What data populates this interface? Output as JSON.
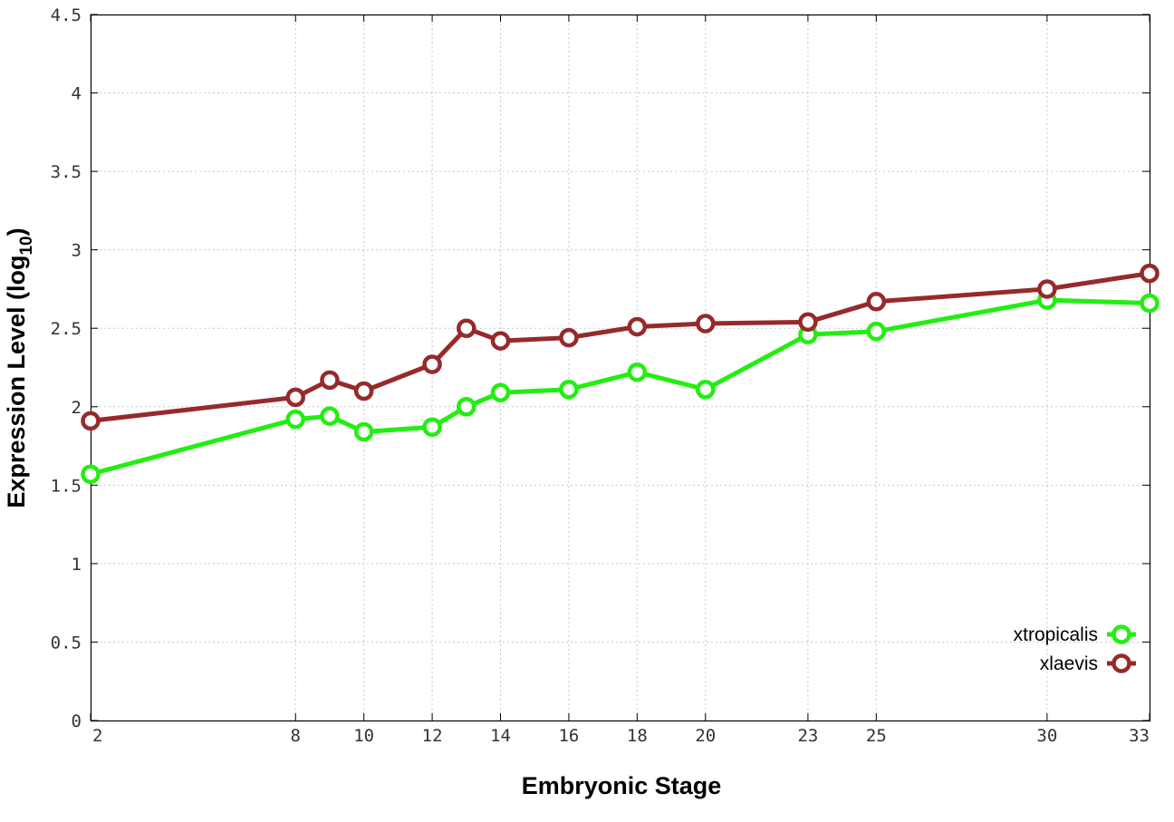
{
  "chart_data": {
    "type": "line",
    "title": "",
    "xlabel": "Embryonic Stage",
    "ylabel_main": "Expression Level (log",
    "ylabel_sub": "10",
    "ylabel_close": ")",
    "xlim": [
      2,
      33
    ],
    "ylim": [
      0,
      4.5
    ],
    "x_ticks": [
      2,
      8,
      10,
      12,
      14,
      16,
      18,
      20,
      23,
      25,
      30,
      33
    ],
    "x_tick_labels": [
      "2",
      "8",
      "10",
      "12",
      "14",
      "16",
      "18",
      "20",
      "23",
      "25",
      "30",
      "33"
    ],
    "y_ticks": [
      0,
      0.5,
      1,
      1.5,
      2,
      2.5,
      3,
      3.5,
      4,
      4.5
    ],
    "y_tick_labels": [
      "0",
      "0.5",
      "1",
      "1.5",
      "2",
      "2.5",
      "3",
      "3.5",
      "4",
      "4.5"
    ],
    "grid": true,
    "legend_position": "bottom-right",
    "x": [
      2,
      8,
      9,
      10,
      12,
      13,
      14,
      16,
      18,
      20,
      23,
      25,
      30,
      33
    ],
    "series": [
      {
        "name": "xtropicalis",
        "color": "#22ee11",
        "values": [
          1.57,
          1.92,
          1.94,
          1.84,
          1.87,
          2.0,
          2.09,
          2.11,
          2.22,
          2.11,
          2.46,
          2.48,
          2.68,
          2.66
        ]
      },
      {
        "name": "xlaevis",
        "color": "#962a2a",
        "values": [
          1.91,
          2.06,
          2.17,
          2.1,
          2.27,
          2.5,
          2.42,
          2.44,
          2.51,
          2.53,
          2.54,
          2.67,
          2.75,
          2.85
        ]
      }
    ]
  }
}
